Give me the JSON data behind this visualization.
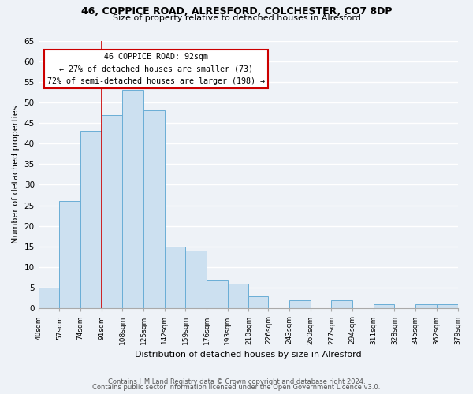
{
  "title": "46, COPPICE ROAD, ALRESFORD, COLCHESTER, CO7 8DP",
  "subtitle": "Size of property relative to detached houses in Alresford",
  "xlabel": "Distribution of detached houses by size in Alresford",
  "ylabel": "Number of detached properties",
  "bin_edges": [
    40,
    57,
    74,
    91,
    108,
    125,
    142,
    159,
    176,
    193,
    210,
    226,
    243,
    260,
    277,
    294,
    311,
    328,
    345,
    362,
    379
  ],
  "counts": [
    5,
    26,
    43,
    47,
    53,
    48,
    15,
    14,
    7,
    6,
    3,
    0,
    2,
    0,
    2,
    0,
    1,
    0,
    1,
    1
  ],
  "tick_labels": [
    "40sqm",
    "57sqm",
    "74sqm",
    "91sqm",
    "108sqm",
    "125sqm",
    "142sqm",
    "159sqm",
    "176sqm",
    "193sqm",
    "210sqm",
    "226sqm",
    "243sqm",
    "260sqm",
    "277sqm",
    "294sqm",
    "311sqm",
    "328sqm",
    "345sqm",
    "362sqm",
    "379sqm"
  ],
  "bar_color": "#cce0f0",
  "bar_edge_color": "#6aaed6",
  "property_line_x": 91,
  "annotation_title": "46 COPPICE ROAD: 92sqm",
  "annotation_line1": "← 27% of detached houses are smaller (73)",
  "annotation_line2": "72% of semi-detached houses are larger (198) →",
  "annotation_box_color": "#ffffff",
  "annotation_box_edge": "#cc0000",
  "property_line_color": "#cc0000",
  "ylim": [
    0,
    65
  ],
  "yticks": [
    0,
    5,
    10,
    15,
    20,
    25,
    30,
    35,
    40,
    45,
    50,
    55,
    60,
    65
  ],
  "footer_line1": "Contains HM Land Registry data © Crown copyright and database right 2024.",
  "footer_line2": "Contains public sector information licensed under the Open Government Licence v3.0.",
  "bg_color": "#eef2f7"
}
